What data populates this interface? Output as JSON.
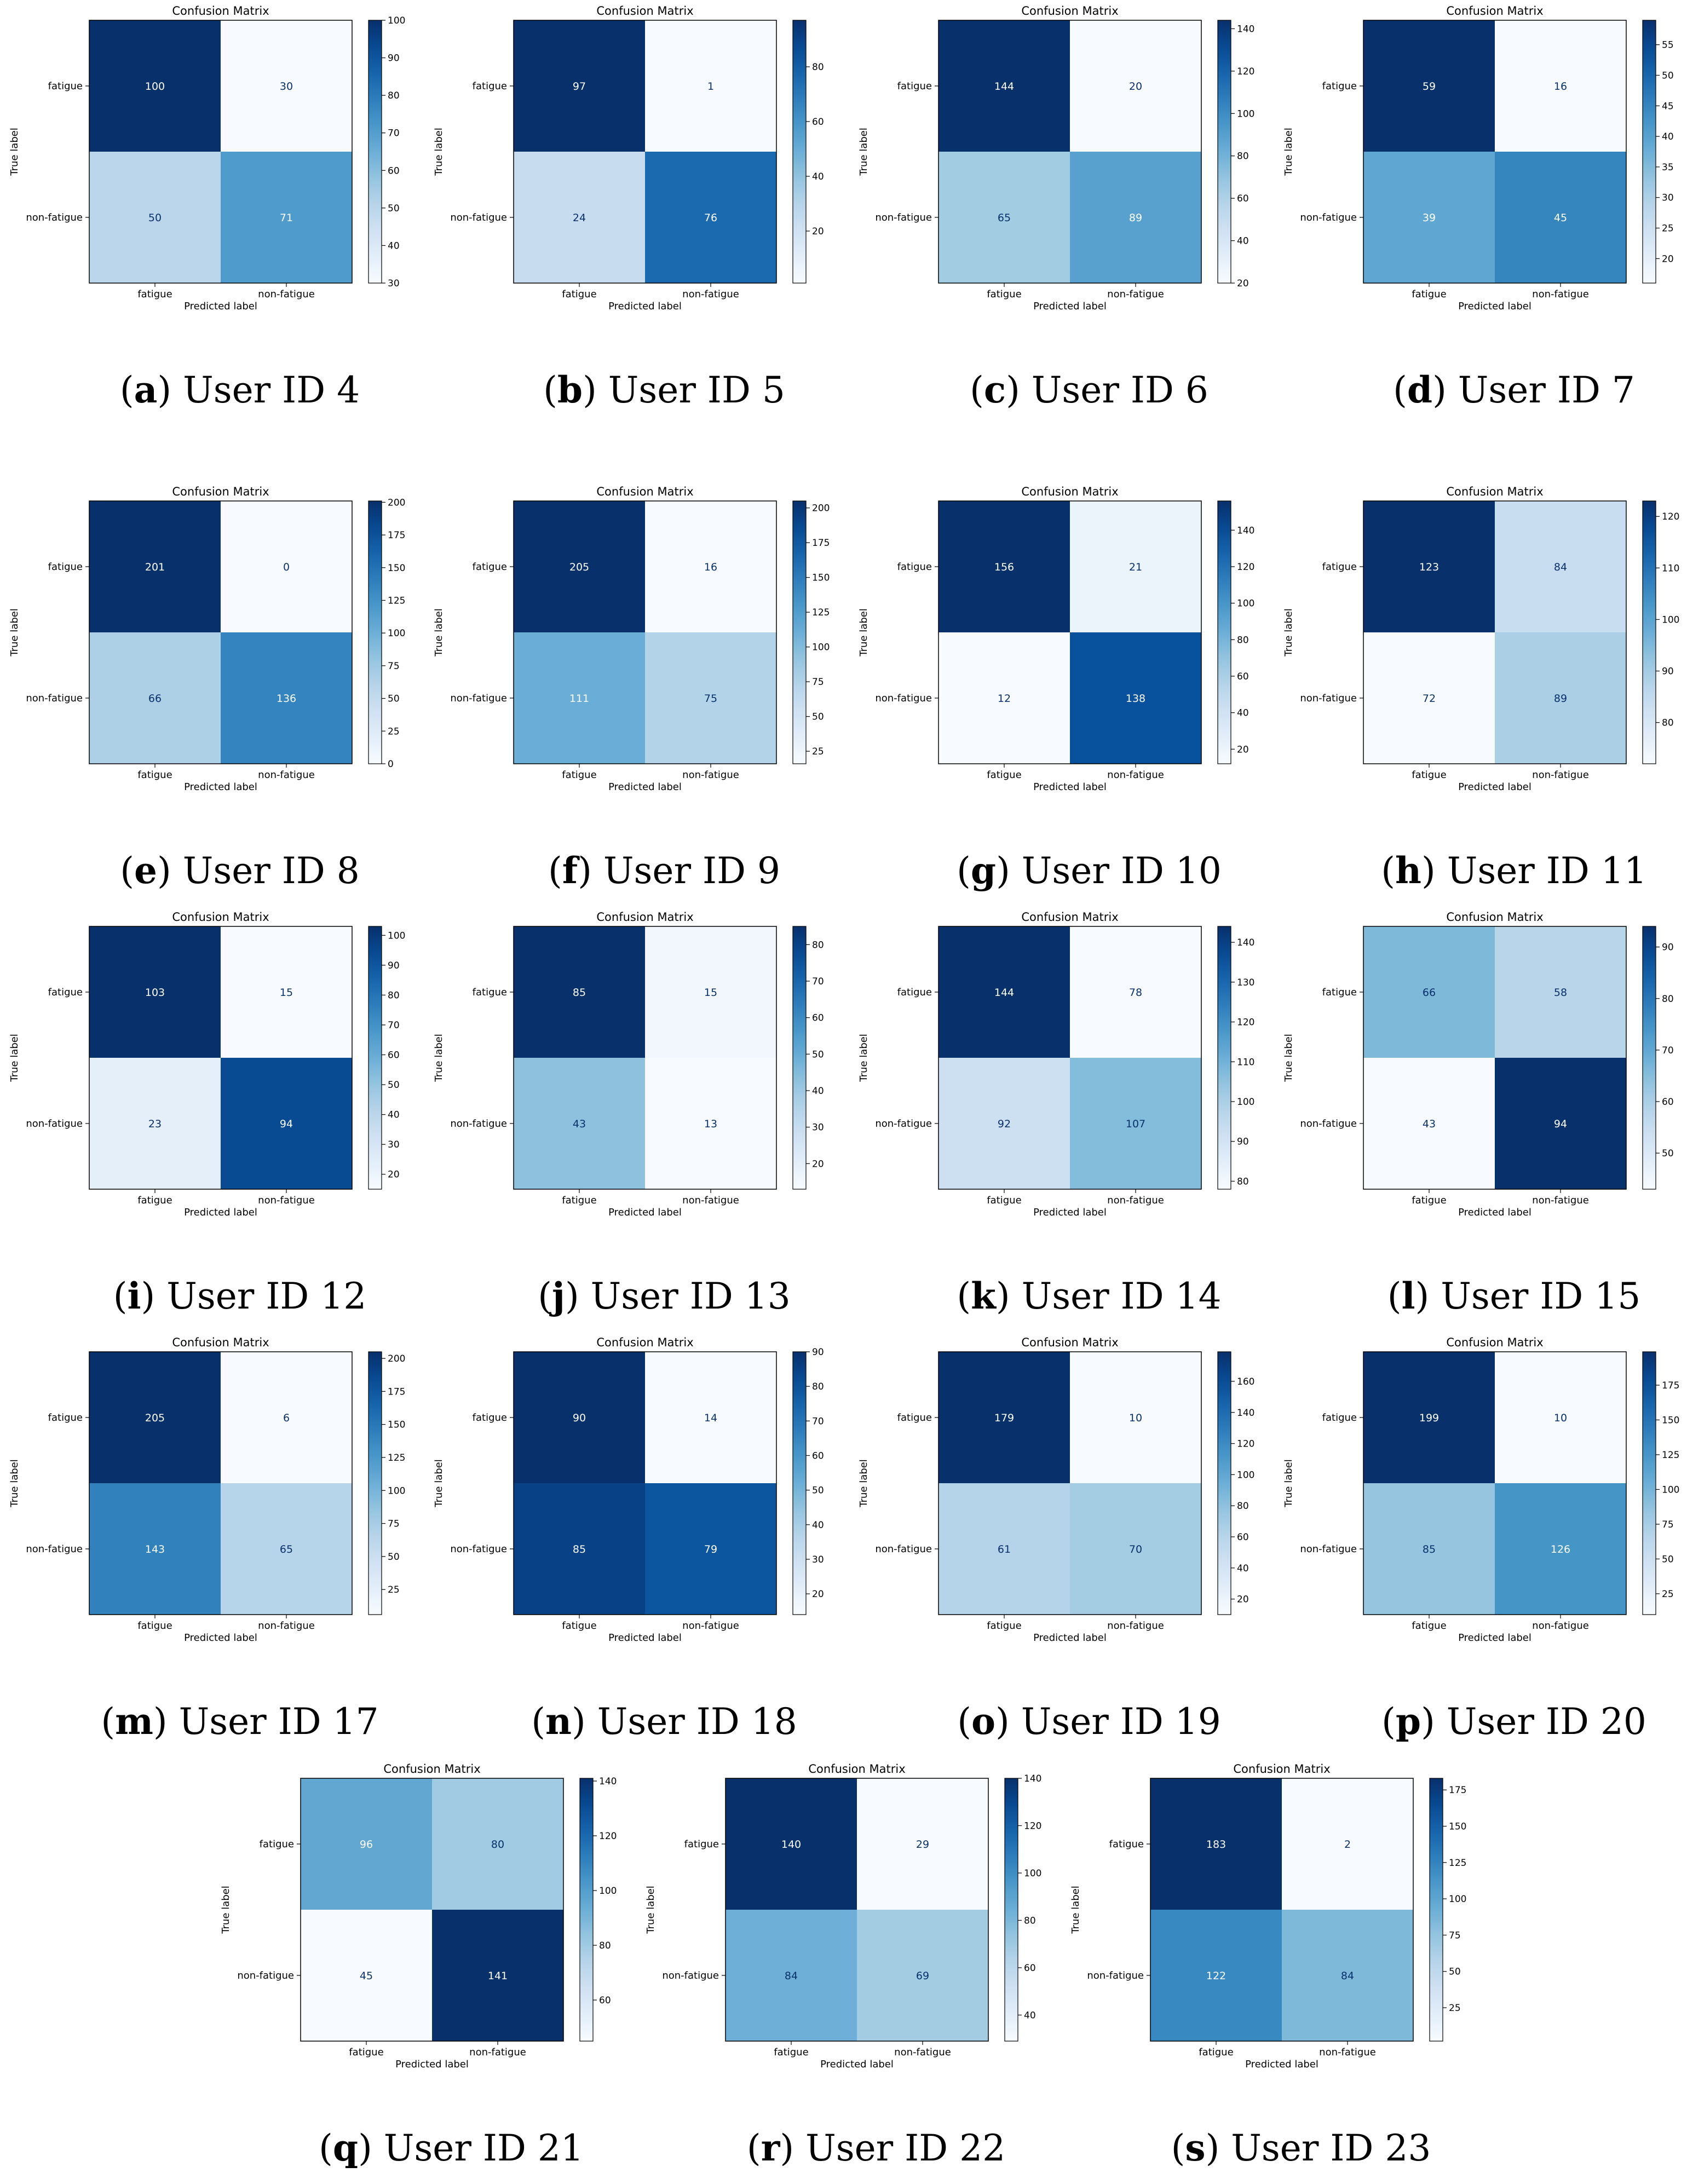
{
  "chart_data": [
    {
      "type": "heatmap",
      "caption_letter": "a",
      "caption_text": "User ID 4",
      "title": "Confusion Matrix",
      "xlabel": "Predicted label",
      "ylabel": "True label",
      "categories": [
        "fatigue",
        "non-fatigue"
      ],
      "values": [
        [
          100,
          30
        ],
        [
          50,
          71
        ]
      ],
      "colorbar": {
        "min": 30,
        "max": 100,
        "ticks": [
          30,
          40,
          50,
          60,
          70,
          80,
          90,
          100
        ]
      }
    },
    {
      "type": "heatmap",
      "caption_letter": "b",
      "caption_text": "User ID 5",
      "title": "Confusion Matrix",
      "xlabel": "Predicted label",
      "ylabel": "True label",
      "categories": [
        "fatigue",
        "non-fatigue"
      ],
      "values": [
        [
          97,
          1
        ],
        [
          24,
          76
        ]
      ],
      "colorbar": {
        "min": 1,
        "max": 97,
        "ticks": [
          20,
          40,
          60,
          80
        ]
      }
    },
    {
      "type": "heatmap",
      "caption_letter": "c",
      "caption_text": "User ID 6",
      "title": "Confusion Matrix",
      "xlabel": "Predicted label",
      "ylabel": "True label",
      "categories": [
        "fatigue",
        "non-fatigue"
      ],
      "values": [
        [
          144,
          20
        ],
        [
          65,
          89
        ]
      ],
      "colorbar": {
        "min": 20,
        "max": 144,
        "ticks": [
          20,
          40,
          60,
          80,
          100,
          120,
          140
        ]
      }
    },
    {
      "type": "heatmap",
      "caption_letter": "d",
      "caption_text": "User ID 7",
      "title": "Confusion Matrix",
      "xlabel": "Predicted label",
      "ylabel": "True label",
      "categories": [
        "fatigue",
        "non-fatigue"
      ],
      "values": [
        [
          59,
          16
        ],
        [
          39,
          45
        ]
      ],
      "colorbar": {
        "min": 16,
        "max": 59,
        "ticks": [
          20,
          25,
          30,
          35,
          40,
          45,
          50,
          55
        ]
      }
    },
    {
      "type": "heatmap",
      "caption_letter": "e",
      "caption_text": "User ID 8",
      "title": "Confusion Matrix",
      "xlabel": "Predicted label",
      "ylabel": "True label",
      "categories": [
        "fatigue",
        "non-fatigue"
      ],
      "values": [
        [
          201,
          0
        ],
        [
          66,
          136
        ]
      ],
      "colorbar": {
        "min": 0,
        "max": 201,
        "ticks": [
          0,
          25,
          50,
          75,
          100,
          125,
          150,
          175,
          200
        ]
      }
    },
    {
      "type": "heatmap",
      "caption_letter": "f",
      "caption_text": "User ID 9",
      "title": "Confusion Matrix",
      "xlabel": "Predicted label",
      "ylabel": "True label",
      "categories": [
        "fatigue",
        "non-fatigue"
      ],
      "values": [
        [
          205,
          16
        ],
        [
          111,
          75
        ]
      ],
      "colorbar": {
        "min": 16,
        "max": 205,
        "ticks": [
          25,
          50,
          75,
          100,
          125,
          150,
          175,
          200
        ]
      }
    },
    {
      "type": "heatmap",
      "caption_letter": "g",
      "caption_text": "User ID 10",
      "title": "Confusion Matrix",
      "xlabel": "Predicted label",
      "ylabel": "True label",
      "categories": [
        "fatigue",
        "non-fatigue"
      ],
      "values": [
        [
          156,
          21
        ],
        [
          12,
          138
        ]
      ],
      "colorbar": {
        "min": 12,
        "max": 156,
        "ticks": [
          20,
          40,
          60,
          80,
          100,
          120,
          140
        ]
      }
    },
    {
      "type": "heatmap",
      "caption_letter": "h",
      "caption_text": "User ID 11",
      "title": "Confusion Matrix",
      "xlabel": "Predicted label",
      "ylabel": "True label",
      "categories": [
        "fatigue",
        "non-fatigue"
      ],
      "values": [
        [
          123,
          84
        ],
        [
          72,
          89
        ]
      ],
      "colorbar": {
        "min": 72,
        "max": 123,
        "ticks": [
          80,
          90,
          100,
          110,
          120
        ]
      }
    },
    {
      "type": "heatmap",
      "caption_letter": "i",
      "caption_text": "User ID 12",
      "title": "Confusion Matrix",
      "xlabel": "Predicted label",
      "ylabel": "True label",
      "categories": [
        "fatigue",
        "non-fatigue"
      ],
      "values": [
        [
          103,
          15
        ],
        [
          23,
          94
        ]
      ],
      "colorbar": {
        "min": 15,
        "max": 103,
        "ticks": [
          20,
          30,
          40,
          50,
          60,
          70,
          80,
          90,
          100
        ]
      }
    },
    {
      "type": "heatmap",
      "caption_letter": "j",
      "caption_text": "User ID 13",
      "title": "Confusion Matrix",
      "xlabel": "Predicted label",
      "ylabel": "True label",
      "categories": [
        "fatigue",
        "non-fatigue"
      ],
      "values": [
        [
          85,
          15
        ],
        [
          43,
          13
        ]
      ],
      "colorbar": {
        "min": 13,
        "max": 85,
        "ticks": [
          20,
          30,
          40,
          50,
          60,
          70,
          80
        ]
      }
    },
    {
      "type": "heatmap",
      "caption_letter": "k",
      "caption_text": "User ID 14",
      "title": "Confusion Matrix",
      "xlabel": "Predicted label",
      "ylabel": "True label",
      "categories": [
        "fatigue",
        "non-fatigue"
      ],
      "values": [
        [
          144,
          78
        ],
        [
          92,
          107
        ]
      ],
      "colorbar": {
        "min": 78,
        "max": 144,
        "ticks": [
          80,
          90,
          100,
          110,
          120,
          130,
          140
        ]
      }
    },
    {
      "type": "heatmap",
      "caption_letter": "l",
      "caption_text": "User ID 15",
      "title": "Confusion Matrix",
      "xlabel": "Predicted label",
      "ylabel": "True label",
      "categories": [
        "fatigue",
        "non-fatigue"
      ],
      "values": [
        [
          66,
          58
        ],
        [
          43,
          94
        ]
      ],
      "colorbar": {
        "min": 43,
        "max": 94,
        "ticks": [
          50,
          60,
          70,
          80,
          90
        ]
      }
    },
    {
      "type": "heatmap",
      "caption_letter": "m",
      "caption_text": "User ID 17",
      "title": "Confusion Matrix",
      "xlabel": "Predicted label",
      "ylabel": "True label",
      "categories": [
        "fatigue",
        "non-fatigue"
      ],
      "values": [
        [
          205,
          6
        ],
        [
          143,
          65
        ]
      ],
      "colorbar": {
        "min": 6,
        "max": 205,
        "ticks": [
          25,
          50,
          75,
          100,
          125,
          150,
          175,
          200
        ]
      }
    },
    {
      "type": "heatmap",
      "caption_letter": "n",
      "caption_text": "User ID 18",
      "title": "Confusion Matrix",
      "xlabel": "Predicted label",
      "ylabel": "True label",
      "categories": [
        "fatigue",
        "non-fatigue"
      ],
      "values": [
        [
          90,
          14
        ],
        [
          85,
          79
        ]
      ],
      "colorbar": {
        "min": 14,
        "max": 90,
        "ticks": [
          20,
          30,
          40,
          50,
          60,
          70,
          80,
          90
        ]
      }
    },
    {
      "type": "heatmap",
      "caption_letter": "o",
      "caption_text": "User ID 19",
      "title": "Confusion Matrix",
      "xlabel": "Predicted label",
      "ylabel": "True label",
      "categories": [
        "fatigue",
        "non-fatigue"
      ],
      "values": [
        [
          179,
          10
        ],
        [
          61,
          70
        ]
      ],
      "colorbar": {
        "min": 10,
        "max": 179,
        "ticks": [
          20,
          40,
          60,
          80,
          100,
          120,
          140,
          160
        ]
      }
    },
    {
      "type": "heatmap",
      "caption_letter": "p",
      "caption_text": "User ID 20",
      "title": "Confusion Matrix",
      "xlabel": "Predicted label",
      "ylabel": "True label",
      "categories": [
        "fatigue",
        "non-fatigue"
      ],
      "values": [
        [
          199,
          10
        ],
        [
          85,
          126
        ]
      ],
      "colorbar": {
        "min": 10,
        "max": 199,
        "ticks": [
          25,
          50,
          75,
          100,
          125,
          150,
          175
        ]
      }
    },
    {
      "type": "heatmap",
      "caption_letter": "q",
      "caption_text": "User ID 21",
      "title": "Confusion Matrix",
      "xlabel": "Predicted label",
      "ylabel": "True label",
      "categories": [
        "fatigue",
        "non-fatigue"
      ],
      "values": [
        [
          96,
          80
        ],
        [
          45,
          141
        ]
      ],
      "colorbar": {
        "min": 45,
        "max": 141,
        "ticks": [
          60,
          80,
          100,
          120,
          140
        ]
      }
    },
    {
      "type": "heatmap",
      "caption_letter": "r",
      "caption_text": "User ID 22",
      "title": "Confusion Matrix",
      "xlabel": "Predicted label",
      "ylabel": "True label",
      "categories": [
        "fatigue",
        "non-fatigue"
      ],
      "values": [
        [
          140,
          29
        ],
        [
          84,
          69
        ]
      ],
      "colorbar": {
        "min": 29,
        "max": 140,
        "ticks": [
          40,
          60,
          80,
          100,
          120,
          140
        ]
      }
    },
    {
      "type": "heatmap",
      "caption_letter": "s",
      "caption_text": "User ID 23",
      "title": "Confusion Matrix",
      "xlabel": "Predicted label",
      "ylabel": "True label",
      "categories": [
        "fatigue",
        "non-fatigue"
      ],
      "values": [
        [
          183,
          2
        ],
        [
          122,
          84
        ]
      ],
      "colorbar": {
        "min": 2,
        "max": 183,
        "ticks": [
          25,
          50,
          75,
          100,
          125,
          150,
          175
        ]
      }
    }
  ]
}
